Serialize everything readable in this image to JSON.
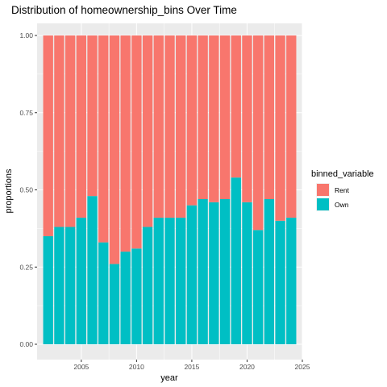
{
  "chart_data": {
    "type": "bar",
    "stacked": true,
    "title": "Distribution of homeownership_bins Over Time",
    "xlabel": "year",
    "ylabel": "proportions",
    "xlim": [
      2001,
      2025
    ],
    "ylim": [
      0,
      1.0
    ],
    "x_ticks": [
      2005,
      2010,
      2015,
      2020,
      2025
    ],
    "x_tick_labels": [
      "2005",
      "2010",
      "2015",
      "2020",
      "2025"
    ],
    "y_ticks": [
      0,
      0.25,
      0.5,
      0.75,
      1.0
    ],
    "y_tick_labels": [
      "0.00",
      "0.25",
      "0.50",
      "0.75",
      "1.00"
    ],
    "grid": true,
    "legend_position": "right",
    "legend_title": "binned_variable",
    "years": [
      2002,
      2003,
      2004,
      2005,
      2006,
      2007,
      2008,
      2009,
      2010,
      2011,
      2012,
      2013,
      2014,
      2015,
      2016,
      2017,
      2018,
      2019,
      2020,
      2021,
      2022,
      2023,
      2024
    ],
    "series": [
      {
        "name": "Own",
        "color": "#00BFC4",
        "values": [
          0.35,
          0.38,
          0.38,
          0.41,
          0.48,
          0.33,
          0.26,
          0.3,
          0.31,
          0.38,
          0.41,
          0.41,
          0.41,
          0.45,
          0.47,
          0.46,
          0.47,
          0.54,
          0.46,
          0.37,
          0.47,
          0.4,
          0.41
        ]
      },
      {
        "name": "Rent",
        "color": "#F8766D",
        "values": [
          0.65,
          0.62,
          0.62,
          0.59,
          0.52,
          0.67,
          0.74,
          0.7,
          0.69,
          0.62,
          0.59,
          0.59,
          0.59,
          0.55,
          0.53,
          0.54,
          0.53,
          0.46,
          0.54,
          0.63,
          0.53,
          0.6,
          0.59
        ]
      }
    ],
    "legend_order": [
      "Rent",
      "Own"
    ]
  }
}
